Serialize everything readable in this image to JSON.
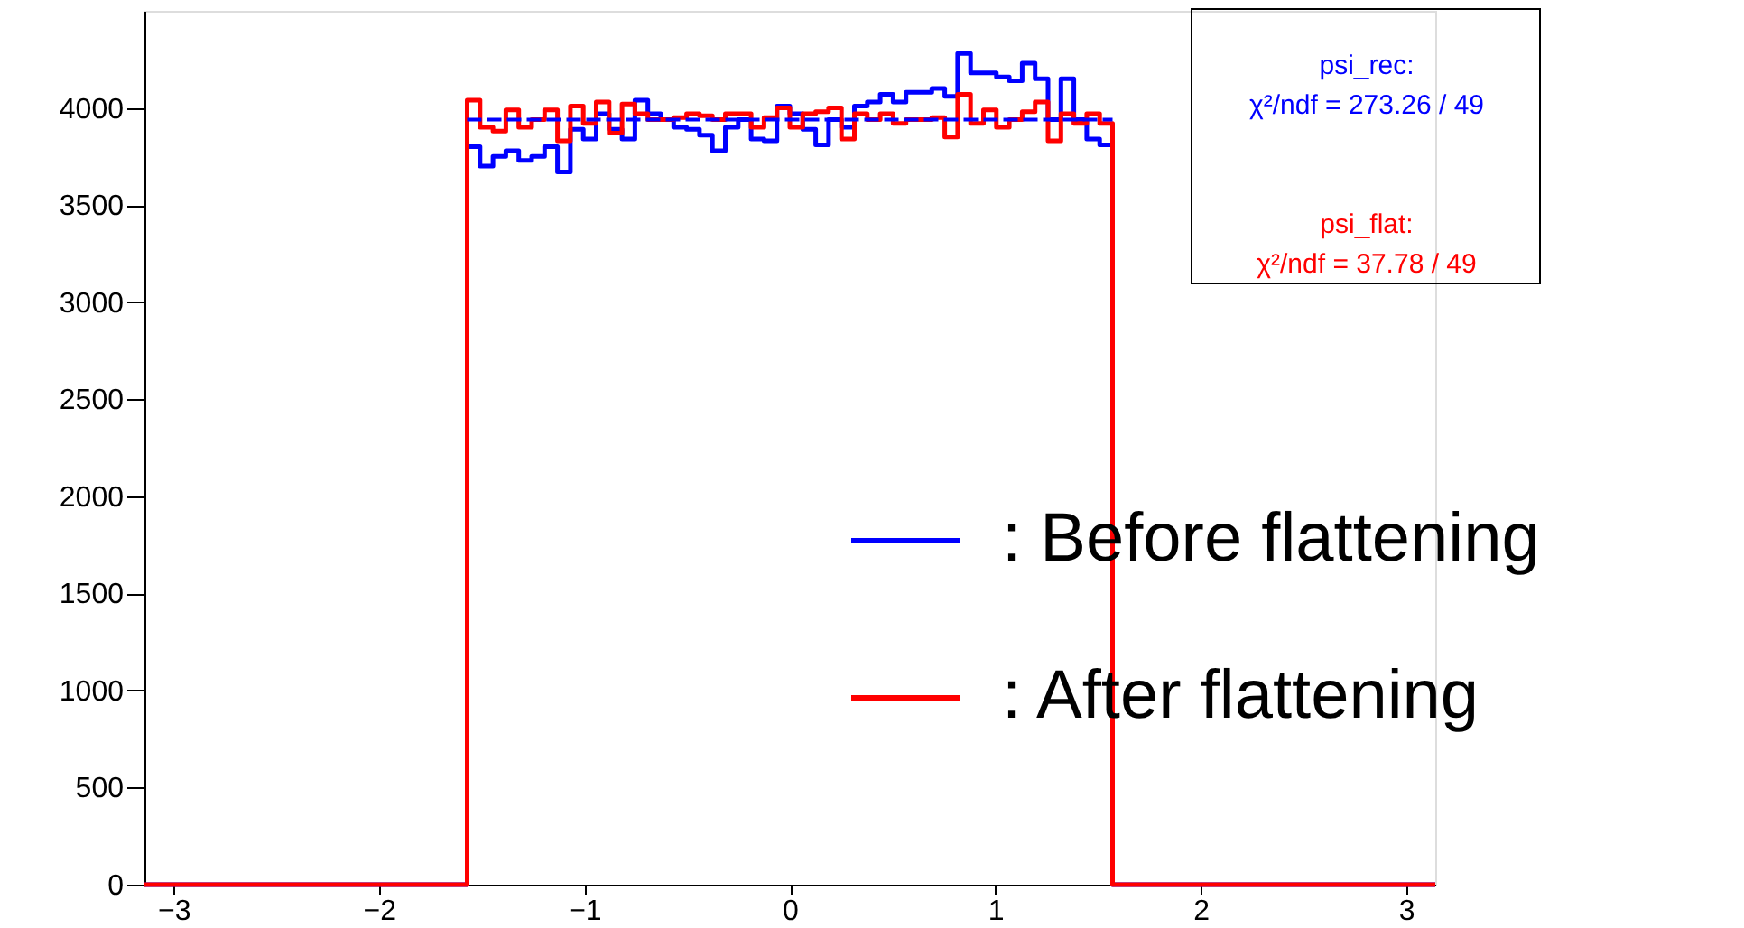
{
  "chart_data": {
    "type": "histogram",
    "bins": [
      -3.1416,
      -1.5708,
      -1.508,
      -1.4451,
      -1.3823,
      -1.3195,
      -1.2566,
      -1.1938,
      -1.131,
      -1.0681,
      -1.0053,
      -0.9425,
      -0.8796,
      -0.8168,
      -0.754,
      -0.6912,
      -0.6283,
      -0.5655,
      -0.5027,
      -0.4398,
      -0.377,
      -0.3142,
      -0.2513,
      -0.1885,
      -0.1257,
      -0.0628,
      0,
      0.0628,
      0.1257,
      0.1885,
      0.2513,
      0.3142,
      0.377,
      0.4398,
      0.5027,
      0.5655,
      0.6283,
      0.6912,
      0.754,
      0.8168,
      0.8796,
      0.9425,
      1.0053,
      1.0681,
      1.131,
      1.1938,
      1.2566,
      1.3195,
      1.3823,
      1.4451,
      1.508,
      1.5708,
      3.1416
    ],
    "series": [
      {
        "name": ": Before flattening",
        "color": "#0000ff",
        "values": [
          0,
          3800,
          3700,
          3750,
          3780,
          3730,
          3750,
          3800,
          3670,
          3890,
          3840,
          3970,
          3890,
          3840,
          4040,
          3970,
          3940,
          3900,
          3890,
          3860,
          3780,
          3900,
          3940,
          3840,
          3830,
          4010,
          3970,
          3890,
          3810,
          3940,
          3900,
          4010,
          4030,
          4070,
          4030,
          4080,
          4080,
          4100,
          4060,
          4280,
          4180,
          4180,
          4160,
          4140,
          4230,
          4150,
          3940,
          4150,
          3940,
          3840,
          3810,
          0
        ]
      },
      {
        "name": ": After flattening",
        "color": "#ff0000",
        "values": [
          0,
          4040,
          3900,
          3880,
          3990,
          3900,
          3940,
          3990,
          3830,
          4010,
          3920,
          4030,
          3870,
          4020,
          3970,
          3940,
          3940,
          3950,
          3970,
          3960,
          3940,
          3970,
          3970,
          3900,
          3950,
          4000,
          3900,
          3970,
          3980,
          4000,
          3840,
          3970,
          3940,
          3970,
          3920,
          3940,
          3940,
          3950,
          3850,
          4070,
          3920,
          3990,
          3900,
          3940,
          3980,
          4030,
          3830,
          3970,
          3920,
          3970,
          3920,
          0
        ]
      },
      {
        "type": "line",
        "color": "#0000ff",
        "line_style": "dashed",
        "x": [
          -1.5708,
          1.5708
        ],
        "values": [
          3940,
          3940
        ]
      }
    ],
    "xlim": [
      -3.1416,
      3.1416
    ],
    "xticks": [
      -3,
      -2,
      -1,
      0,
      1,
      2,
      3
    ],
    "ylim": [
      0,
      4500
    ],
    "yticks": [
      0,
      500,
      1000,
      1500,
      2000,
      2500,
      3000,
      3500,
      4000
    ],
    "grid": false,
    "legend": "right",
    "annotations": [
      "psi_rec:",
      "χ²/ndf = 273.26 / 49",
      "psi_flat:",
      "χ²/ndf = 37.78 / 49"
    ]
  }
}
